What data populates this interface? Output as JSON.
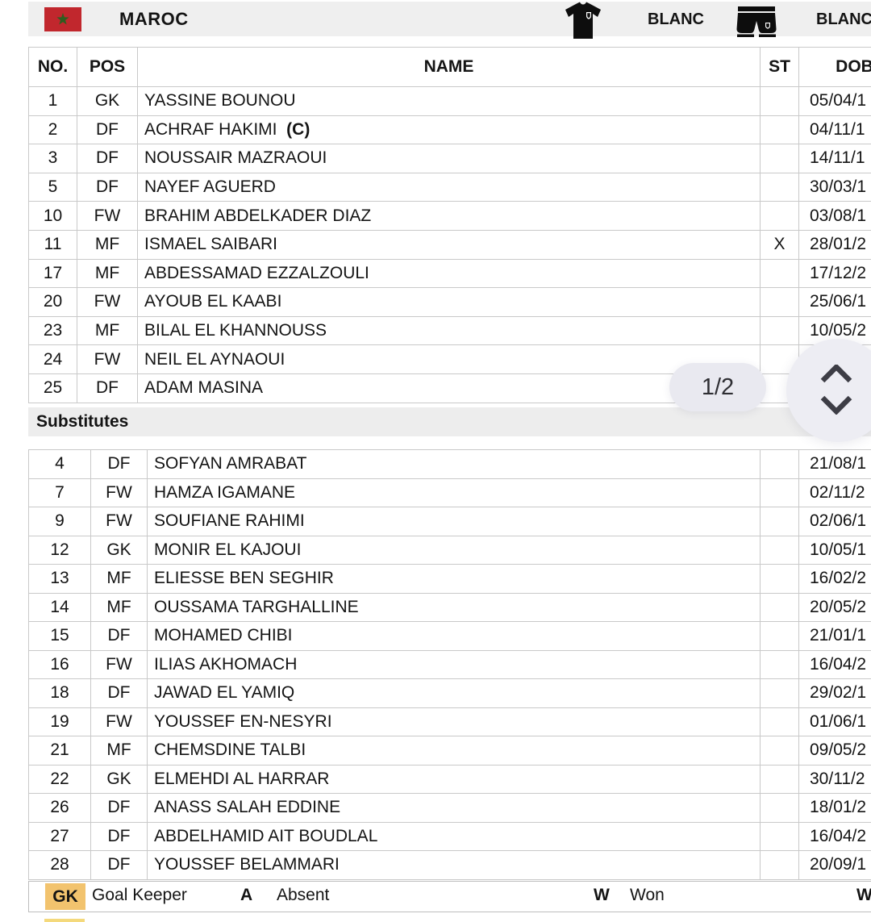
{
  "header": {
    "team_name": "MAROC",
    "shirt_color_label": "BLANC",
    "shorts_color_label": "BLANC"
  },
  "columns": {
    "no": "NO.",
    "pos": "POS",
    "name": "NAME",
    "st": "ST",
    "dob": "DOB"
  },
  "starters": [
    {
      "no": "1",
      "pos": "GK",
      "name": "YASSINE BOUNOU",
      "st": "",
      "dob": "05/04/1"
    },
    {
      "no": "2",
      "pos": "DF",
      "name": "ACHRAF HAKIMI",
      "captain": "(C)",
      "st": "",
      "dob": "04/11/1"
    },
    {
      "no": "3",
      "pos": "DF",
      "name": "NOUSSAIR MAZRAOUI",
      "st": "",
      "dob": "14/11/1"
    },
    {
      "no": "5",
      "pos": "DF",
      "name": "NAYEF AGUERD",
      "st": "",
      "dob": "30/03/1"
    },
    {
      "no": "10",
      "pos": "FW",
      "name": "BRAHIM ABDELKADER DIAZ",
      "st": "",
      "dob": "03/08/1"
    },
    {
      "no": "11",
      "pos": "MF",
      "name": "ISMAEL SAIBARI",
      "st": "X",
      "dob": "28/01/2"
    },
    {
      "no": "17",
      "pos": "MF",
      "name": "ABDESSAMAD EZZALZOULI",
      "st": "",
      "dob": "17/12/2"
    },
    {
      "no": "20",
      "pos": "FW",
      "name": "AYOUB EL KAABI",
      "st": "",
      "dob": "25/06/1"
    },
    {
      "no": "23",
      "pos": "MF",
      "name": "BILAL EL KHANNOUSS",
      "st": "",
      "dob": "10/05/2"
    },
    {
      "no": "24",
      "pos": "FW",
      "name": "NEIL EL AYNAOUI",
      "st": "",
      "dob": ""
    },
    {
      "no": "25",
      "pos": "DF",
      "name": "ADAM MASINA",
      "st": "",
      "dob": ""
    }
  ],
  "substitutes_title": "Substitutes",
  "substitutes": [
    {
      "no": "4",
      "pos": "DF",
      "name": "SOFYAN AMRABAT",
      "st": "",
      "dob": "21/08/1"
    },
    {
      "no": "7",
      "pos": "FW",
      "name": "HAMZA IGAMANE",
      "st": "",
      "dob": "02/11/2"
    },
    {
      "no": "9",
      "pos": "FW",
      "name": "SOUFIANE RAHIMI",
      "st": "",
      "dob": "02/06/1"
    },
    {
      "no": "12",
      "pos": "GK",
      "name": "MONIR EL KAJOUI",
      "st": "",
      "dob": "10/05/1"
    },
    {
      "no": "13",
      "pos": "MF",
      "name": "ELIESSE BEN SEGHIR",
      "st": "",
      "dob": "16/02/2"
    },
    {
      "no": "14",
      "pos": "MF",
      "name": "OUSSAMA TARGHALLINE",
      "st": "",
      "dob": "20/05/2"
    },
    {
      "no": "15",
      "pos": "DF",
      "name": "MOHAMED CHIBI",
      "st": "",
      "dob": "21/01/1"
    },
    {
      "no": "16",
      "pos": "FW",
      "name": "ILIAS AKHOMACH",
      "st": "",
      "dob": "16/04/2"
    },
    {
      "no": "18",
      "pos": "DF",
      "name": "JAWAD EL YAMIQ",
      "st": "",
      "dob": "29/02/1"
    },
    {
      "no": "19",
      "pos": "FW",
      "name": "YOUSSEF EN-NESYRI",
      "st": "",
      "dob": "01/06/1"
    },
    {
      "no": "21",
      "pos": "MF",
      "name": "CHEMSDINE TALBI",
      "st": "",
      "dob": "09/05/2"
    },
    {
      "no": "22",
      "pos": "GK",
      "name": "ELMEHDI AL HARRAR",
      "st": "",
      "dob": "30/11/2"
    },
    {
      "no": "26",
      "pos": "DF",
      "name": "ANASS SALAH EDDINE",
      "st": "",
      "dob": "18/01/2"
    },
    {
      "no": "27",
      "pos": "DF",
      "name": "ABDELHAMID AIT BOUDLAL",
      "st": "",
      "dob": "16/04/2"
    },
    {
      "no": "28",
      "pos": "DF",
      "name": "YOUSSEF BELAMMARI",
      "st": "",
      "dob": "20/09/1"
    }
  ],
  "pagination": {
    "page_indicator": "1/2"
  },
  "legend": {
    "items": [
      {
        "code": "GK",
        "label": "Goal Keeper",
        "highlighted": true
      },
      {
        "code": "A",
        "label": "Absent"
      },
      {
        "code": "W",
        "label": "Won"
      },
      {
        "code": "W",
        "label": ""
      }
    ]
  },
  "icons": {
    "flag": "morocco-flag-icon",
    "shirt": "jersey-icon",
    "shorts": "shorts-icon",
    "scroll": "scroll-up-down-icon"
  },
  "colors": {
    "flag_red": "#c1272d",
    "flag_star_green": "#2f5d1f",
    "bar_gray": "#efefef",
    "grid_line": "#c9c9c9",
    "gk_highlight": "#f2c36e",
    "next_row_highlight": "#f4d97c",
    "overlay_lavender": "#e9e9f0",
    "chevron_dark": "#3d3d45"
  }
}
